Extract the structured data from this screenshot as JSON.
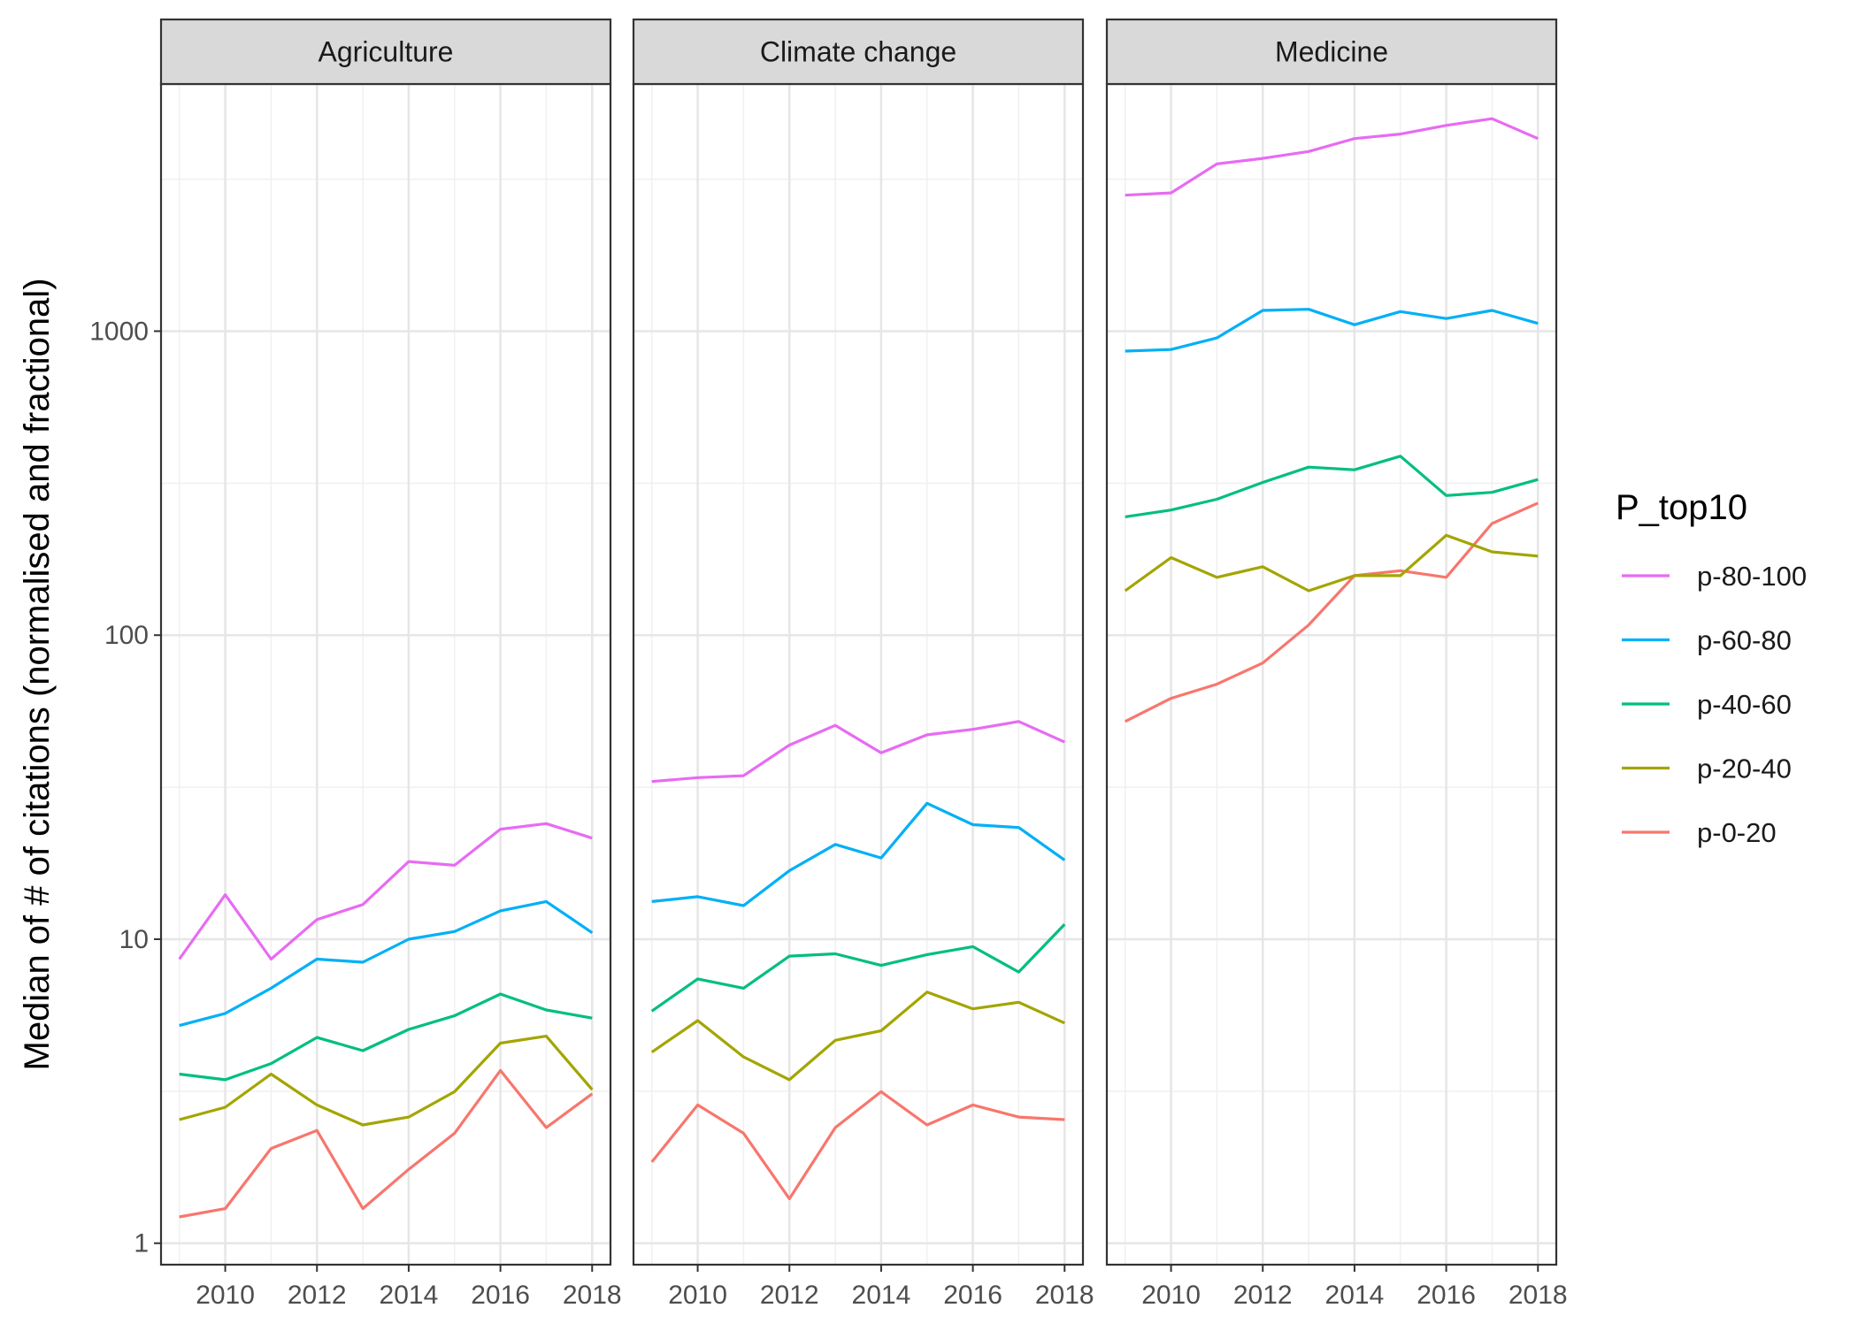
{
  "chart_data": {
    "type": "line",
    "facet_variable": "field",
    "panels": [
      "Agriculture",
      "Climate change",
      "Medicine"
    ],
    "x": [
      2009,
      2010,
      2011,
      2012,
      2013,
      2014,
      2015,
      2016,
      2017,
      2018
    ],
    "x_ticks": [
      2010,
      2012,
      2014,
      2016,
      2018
    ],
    "x_tick_labels": [
      "2010",
      "2012",
      "2014",
      "2016",
      "2018"
    ],
    "xlim": [
      2008.6,
      2018.4
    ],
    "y_scale": "log10",
    "y_ticks": [
      1,
      10,
      100,
      1000
    ],
    "y_tick_labels": [
      "1",
      "10",
      "100",
      "1000"
    ],
    "ylim": [
      0.85,
      6500
    ],
    "ylabel": "Median of # of citations (normalised and fractional)",
    "xlabel": "",
    "grid": true,
    "legend": {
      "title": "P_top10",
      "position": "right",
      "entries": [
        "p-80-100",
        "p-60-80",
        "p-40-60",
        "p-20-40",
        "p-0-20"
      ]
    },
    "series": [
      {
        "name": "p-80-100",
        "color": "#E76BF3",
        "values": {
          "Agriculture": [
            8.6,
            14,
            8.6,
            11.6,
            13,
            18,
            17.5,
            23,
            24,
            21.5
          ],
          "Climate change": [
            33,
            34,
            34.5,
            43.5,
            50.5,
            41,
            47,
            49,
            52,
            44.5
          ],
          "Medicine": [
            2800,
            2850,
            3550,
            3700,
            3900,
            4300,
            4450,
            4750,
            5000,
            4300
          ]
        }
      },
      {
        "name": "p-60-80",
        "color": "#00B0F6",
        "values": {
          "Agriculture": [
            5.2,
            5.7,
            6.9,
            8.6,
            8.4,
            10,
            10.6,
            12.4,
            13.3,
            10.5
          ],
          "Climate change": [
            13.3,
            13.8,
            12.9,
            16.8,
            20.5,
            18.5,
            28,
            23.8,
            23.3,
            18.2
          ],
          "Medicine": [
            860,
            870,
            950,
            1170,
            1180,
            1050,
            1160,
            1100,
            1170,
            1060
          ]
        }
      },
      {
        "name": "p-40-60",
        "color": "#00BF7D",
        "values": {
          "Agriculture": [
            3.6,
            3.45,
            3.9,
            4.75,
            4.3,
            5.05,
            5.6,
            6.6,
            5.85,
            5.5
          ],
          "Climate change": [
            5.8,
            7.4,
            6.9,
            8.8,
            8.95,
            8.2,
            8.9,
            9.45,
            7.8,
            11.2
          ],
          "Medicine": [
            245,
            258,
            280,
            318,
            357,
            350,
            388,
            288,
            295,
            325
          ]
        }
      },
      {
        "name": "p-20-40",
        "color": "#A3A500",
        "values": {
          "Agriculture": [
            2.55,
            2.8,
            3.6,
            2.85,
            2.45,
            2.6,
            3.15,
            4.55,
            4.8,
            3.2
          ],
          "Climate change": [
            4.25,
            5.4,
            4.1,
            3.45,
            4.65,
            5,
            6.7,
            5.9,
            6.2,
            5.3
          ],
          "Medicine": [
            140,
            180,
            155,
            168,
            140,
            157,
            157,
            213,
            188,
            182
          ]
        }
      },
      {
        "name": "p-0-20",
        "color": "#F8766D",
        "values": {
          "Agriculture": [
            1.22,
            1.3,
            2.05,
            2.35,
            1.3,
            1.75,
            2.3,
            3.7,
            2.4,
            3.1
          ],
          "Climate change": [
            1.85,
            2.85,
            2.3,
            1.4,
            2.4,
            3.15,
            2.45,
            2.85,
            2.6,
            2.55
          ],
          "Medicine": [
            52,
            62,
            69,
            81,
            108,
            157,
            163,
            155,
            233,
            272
          ]
        }
      }
    ]
  }
}
